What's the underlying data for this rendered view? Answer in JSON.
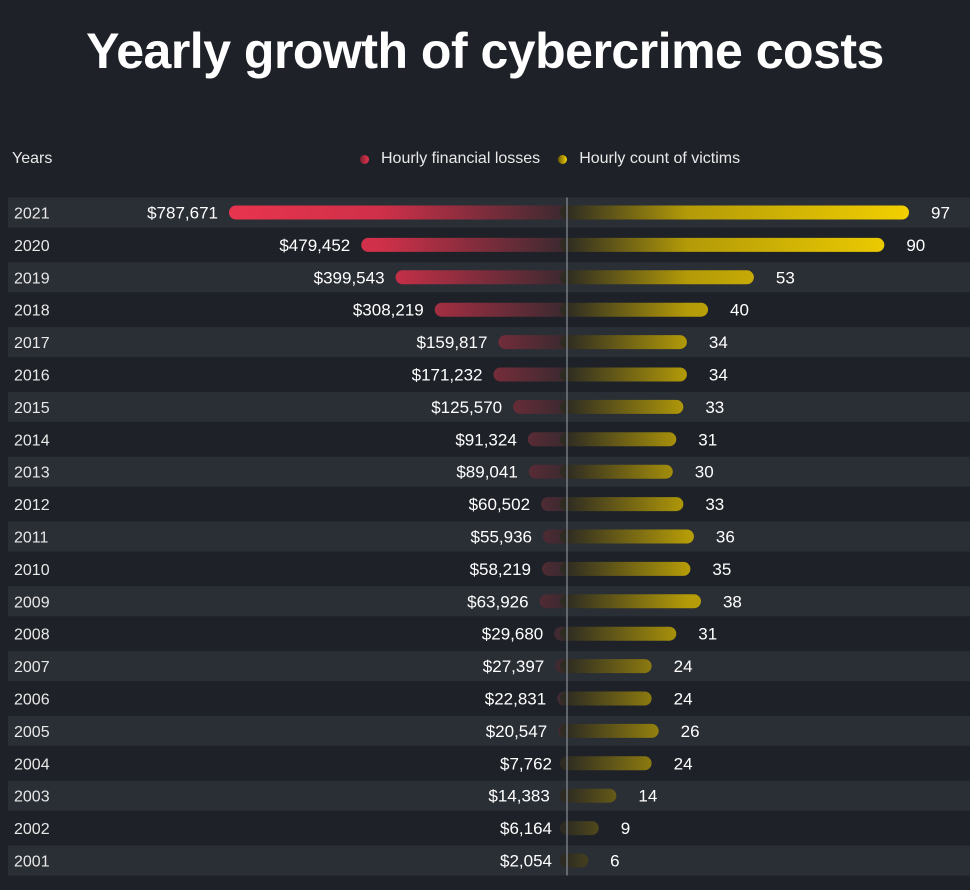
{
  "title": "Yearly growth of cybercrime costs",
  "years_header": "Years",
  "legend": {
    "losses": "Hourly financial losses",
    "victims": "Hourly count of victims"
  },
  "colors": {
    "background": "#1e2228",
    "row_band": "#2a2e35",
    "losses": "#e8344e",
    "victims": "#f2d000",
    "axis": "#8a8f99"
  },
  "chart_data": {
    "type": "bar",
    "orientation": "horizontal-diverging",
    "categories": [
      "2021",
      "2020",
      "2019",
      "2018",
      "2017",
      "2016",
      "2015",
      "2014",
      "2013",
      "2012",
      "2011",
      "2010",
      "2009",
      "2008",
      "2007",
      "2006",
      "2005",
      "2004",
      "2003",
      "2002",
      "2001"
    ],
    "series": [
      {
        "name": "Hourly financial losses",
        "values": [
          787671,
          479452,
          399543,
          308219,
          159817,
          171232,
          125570,
          91324,
          89041,
          60502,
          55936,
          58219,
          63926,
          29680,
          27397,
          22831,
          20547,
          7762,
          14383,
          6164,
          2054
        ],
        "labels": [
          "$787,671",
          "$479,452",
          "$399,543",
          "$308,219",
          "$159,817",
          "$171,232",
          "$125,570",
          "$91,324",
          "$89,041",
          "$60,502",
          "$55,936",
          "$58,219",
          "$63,926",
          "$29,680",
          "$27,397",
          "$22,831",
          "$20,547",
          "$7,762",
          "$14,383",
          "$6,164",
          "$2,054"
        ]
      },
      {
        "name": "Hourly count of victims",
        "values": [
          97,
          90,
          53,
          40,
          34,
          34,
          33,
          31,
          30,
          33,
          36,
          35,
          38,
          31,
          24,
          24,
          26,
          24,
          14,
          9,
          6
        ],
        "labels": [
          "97",
          "90",
          "53",
          "40",
          "34",
          "34",
          "33",
          "31",
          "30",
          "33",
          "36",
          "35",
          "38",
          "31",
          "24",
          "24",
          "26",
          "24",
          "14",
          "9",
          "6"
        ]
      }
    ],
    "grid": false,
    "legend_position": "top-center"
  }
}
